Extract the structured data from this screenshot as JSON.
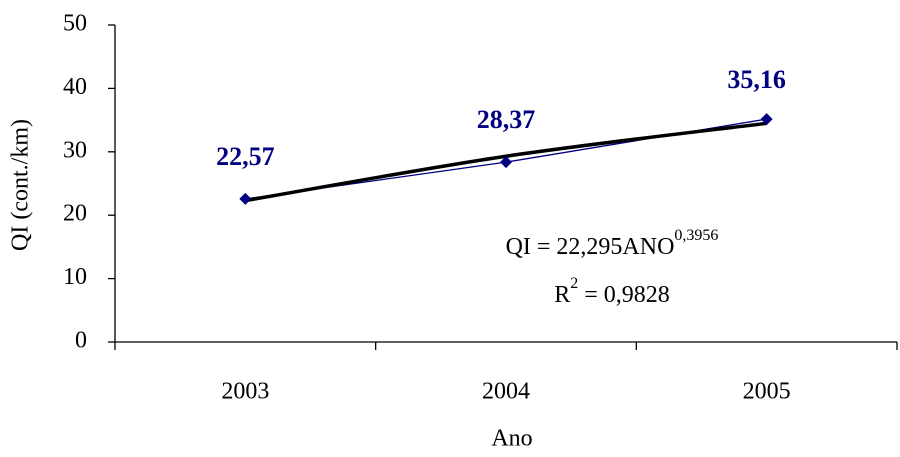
{
  "chart_data": {
    "type": "line",
    "categories": [
      "2003",
      "2004",
      "2005"
    ],
    "series": [
      {
        "color": "#000080",
        "values": [
          22.57,
          28.37,
          35.16
        ],
        "value_labels": [
          "22,57",
          "28,37",
          "35,16"
        ]
      }
    ],
    "trendline": {
      "color": "#000000",
      "values": [
        22.3,
        29.3,
        34.5
      ]
    },
    "ylim": [
      0,
      50
    ],
    "yticks": [
      0,
      10,
      20,
      30,
      40,
      50
    ],
    "xlabel": "Ano",
    "ylabel": "QI (cont./km)",
    "annotations": [
      {
        "text": "QI = 22,295ANO",
        "sup": "0,3956"
      },
      {
        "text": "R",
        "sup": "2",
        "rest": " = 0,9828"
      }
    ],
    "grid": false
  }
}
